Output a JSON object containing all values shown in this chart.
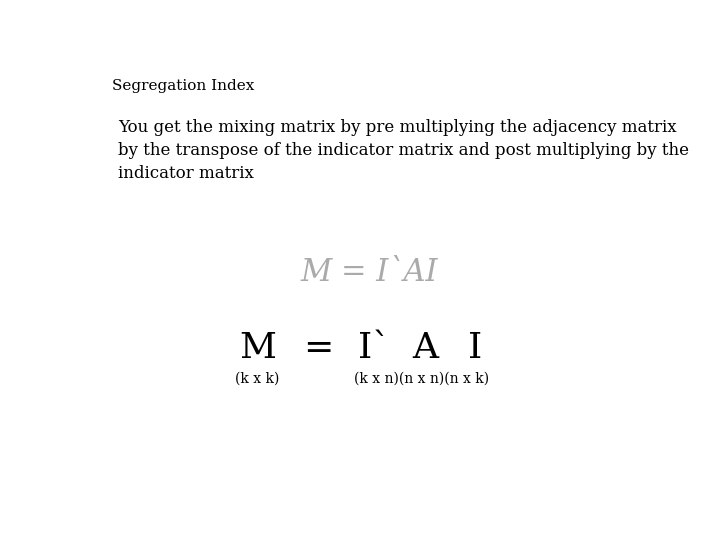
{
  "title": "Segregation Index",
  "body_text": "You get the mixing matrix by pre multiplying the adjacency matrix\nby the transpose of the indicator matrix and post multiplying by the\nindicator matrix",
  "formula_simple": "M = I`AI",
  "background_color": "#ffffff",
  "title_fontsize": 11,
  "body_fontsize": 12,
  "formula_color": "#aaaaaa",
  "formula_simple_fontsize": 22,
  "big_M_label": "M",
  "big_M_dim": "(k x k)",
  "equals_label": "=",
  "I_prime_label": "I`",
  "A_label": "A",
  "I_label": "I",
  "dims_label": "(k x n)(n x n)(n x k)",
  "big_label_fontsize": 26,
  "dim_fontsize": 10,
  "serif_font": "DejaVu Serif"
}
